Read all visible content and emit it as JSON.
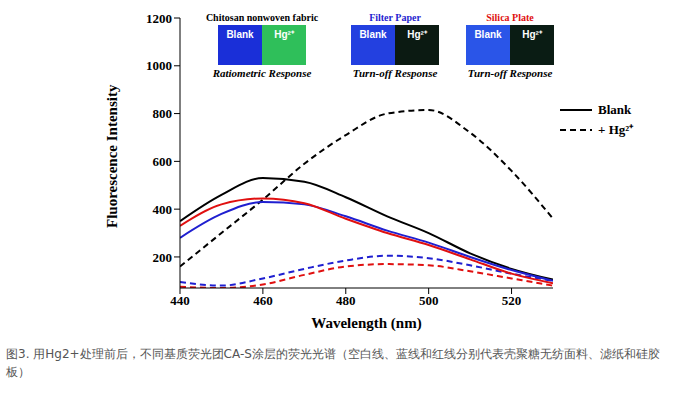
{
  "chart_data": {
    "type": "line",
    "x_label": "Wavelength (nm)",
    "y_label": "Fluorescence Intensity",
    "xlim": [
      440,
      530
    ],
    "xticks": [
      440,
      460,
      480,
      500,
      520
    ],
    "ylim": [
      70,
      1200
    ],
    "yticks": [
      200,
      400,
      600,
      800,
      1000,
      1200
    ],
    "grid": false,
    "legend": "right",
    "x": [
      440,
      450,
      460,
      470,
      480,
      490,
      500,
      510,
      520,
      530
    ],
    "series": [
      {
        "color": "#000000",
        "line_style": "solid",
        "values": [
          350,
          460,
          530,
          515,
          450,
          370,
          300,
          215,
          150,
          105
        ]
      },
      {
        "color": "#000000",
        "line_style": "dashed",
        "values": [
          160,
          300,
          440,
          590,
          710,
          800,
          815,
          720,
          560,
          360
        ]
      },
      {
        "color": "#1f1fd0",
        "line_style": "solid",
        "values": [
          280,
          380,
          430,
          420,
          370,
          310,
          260,
          200,
          145,
          100
        ]
      },
      {
        "color": "#1f1fd0",
        "line_style": "dashed",
        "values": [
          95,
          80,
          110,
          150,
          185,
          205,
          195,
          165,
          130,
          100
        ]
      },
      {
        "color": "#e01010",
        "line_style": "solid",
        "values": [
          330,
          420,
          445,
          425,
          360,
          300,
          250,
          190,
          130,
          90
        ]
      },
      {
        "color": "#e01010",
        "line_style": "dashed",
        "values": [
          75,
          70,
          85,
          125,
          160,
          170,
          165,
          140,
          110,
          80
        ]
      }
    ],
    "legend_items": [
      {
        "label": "Blank",
        "line_style": "solid"
      },
      {
        "label": "+ Hg²⁺",
        "line_style": "dashed"
      }
    ],
    "insets": [
      {
        "title": "Chitosan nonwoven fabric",
        "color": "#000000",
        "left_label": "Blank",
        "right_label": "Hg²⁺",
        "response": "Ratiometric Response",
        "colors": [
          "#1a2fd8",
          "#2fbf5a"
        ]
      },
      {
        "title": "Filter Paper",
        "color": "#1f1fd0",
        "left_label": "Blank",
        "right_label": "Hg²⁺",
        "response": "Turn-off Response",
        "colors": [
          "#2340e0",
          "#0b1a12"
        ]
      },
      {
        "title": "Silica Plate",
        "color": "#e01010",
        "left_label": "Blank",
        "right_label": "Hg²⁺",
        "response": "Turn-off Response",
        "colors": [
          "#2a55e8",
          "#0a1c14"
        ]
      }
    ],
    "caption": "图3. 用Hg2+处理前后，不同基质荧光团CA-S涂层的荧光光谱（空白线、蓝线和红线分别代表壳聚糖无纺面料、滤纸和硅胶板）"
  }
}
